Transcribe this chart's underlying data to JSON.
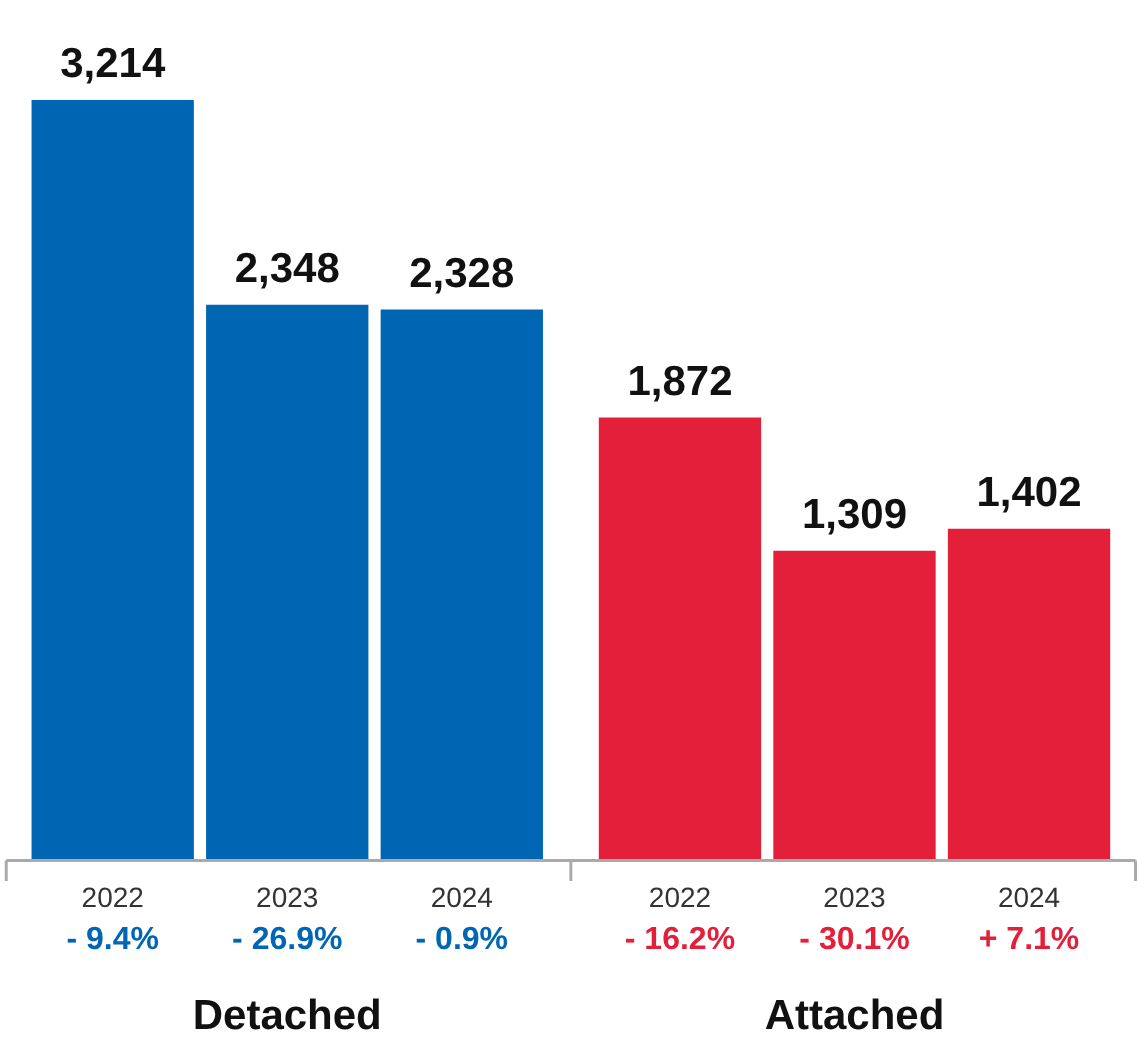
{
  "chart_data": {
    "type": "bar",
    "categories": [
      "2022",
      "2023",
      "2024",
      "2022",
      "2023",
      "2024"
    ],
    "values": [
      3214,
      2348,
      2328,
      1872,
      1309,
      1402
    ],
    "colors": [
      "#0066b3",
      "#0066b3",
      "#0066b3",
      "#e31f3a",
      "#e31f3a",
      "#e31f3a"
    ],
    "value_labels": [
      "3,214",
      "2,348",
      "2,328",
      "1,872",
      "1,309",
      "1,402"
    ],
    "annotations": [
      "- 9.4%",
      "- 26.9%",
      "- 0.9%",
      "- 16.2%",
      "- 30.1%",
      "+ 7.1%",
      "Detached",
      "Attached"
    ]
  }
}
